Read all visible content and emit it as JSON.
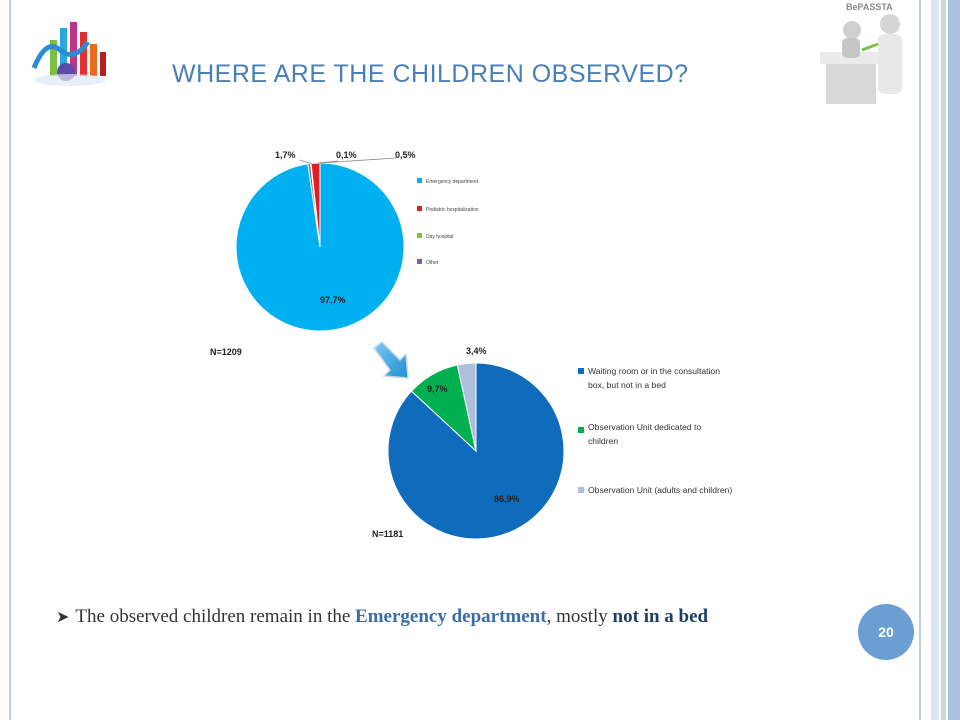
{
  "slide": {
    "title": "WHERE ARE THE CHILDREN OBSERVED?",
    "logo_text": "BePASSTA",
    "page_number": "20",
    "bullet": {
      "part1": "The observed children remain in the ",
      "bold1": "Emergency department",
      "part2": ", mostly ",
      "bold2": "not in a bed"
    }
  },
  "colors": {
    "accent": "#4a7fb5",
    "page_badge": "#6b9fd4",
    "frame_line": "#a9bfdc"
  },
  "chart_data": [
    {
      "type": "pie",
      "n_label": "N=1209",
      "series": [
        {
          "name": "Emergency department",
          "value": 97.7,
          "label": "97,7%",
          "color": "#00b0f0"
        },
        {
          "name": "Pediatric hospitalization",
          "value": 1.7,
          "label": "1,7%",
          "color": "#e02020"
        },
        {
          "name": "Day hospital",
          "value": 0.1,
          "label": "0,1%",
          "color": "#8cbf3f"
        },
        {
          "name": "Other",
          "value": 0.5,
          "label": "0,5%",
          "color": "#7b5ea7"
        }
      ],
      "legend": "right"
    },
    {
      "type": "pie",
      "n_label": "N=1181",
      "series": [
        {
          "name": "Waiting room or in the consultation box, but not in a bed",
          "legend_lines": [
            "Waiting room or in the consultation",
            "box, but not in a bed"
          ],
          "value": 86.9,
          "label": "86,9%",
          "color": "#0f6cbd"
        },
        {
          "name": "Observation Unit dedicated to children",
          "legend_lines": [
            "Observation Unit dedicated to",
            "children"
          ],
          "value": 9.7,
          "label": "9,7%",
          "color": "#00b050"
        },
        {
          "name": "Observation Unit (adults and children)",
          "legend_lines": [
            "Observation Unit (adults and children)"
          ],
          "value": 3.4,
          "label": "3,4%",
          "color": "#aebfdc"
        }
      ],
      "legend": "right"
    }
  ]
}
